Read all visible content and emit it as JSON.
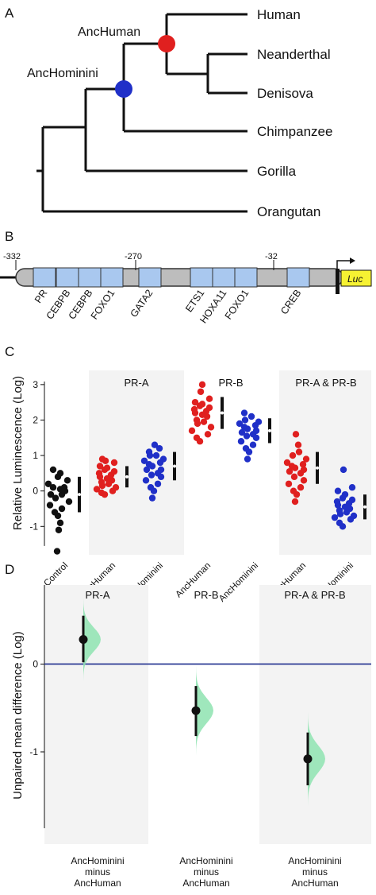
{
  "panels": {
    "a": "A",
    "b": "B",
    "c": "C",
    "d": "D"
  },
  "tree": {
    "taxa": [
      "Human",
      "Neanderthal",
      "Denisova",
      "Chimpanzee",
      "Gorilla",
      "Orangutan"
    ],
    "node_labels": {
      "anc_human": "AncHuman",
      "anc_hominini": "AncHominini"
    },
    "node_colors": {
      "anc_human": "#e0201f",
      "anc_hominini": "#2030c8"
    }
  },
  "promoter": {
    "positions": [
      "-332",
      "-270",
      "-32"
    ],
    "tf_sites": [
      "PR",
      "CEBPB",
      "CEBPB",
      "FOXO1",
      "GATA2",
      "ETS1",
      "HOXA11",
      "FOXO1",
      "CREB"
    ],
    "reporter": "Luc",
    "box_color": "#a9c8ef",
    "reporter_color": "#f6f232"
  },
  "chart_data": [
    {
      "type": "scatter",
      "panel": "C",
      "ylabel": "Relative Luminescence (Log)",
      "ylim": [
        -1.8,
        3.4
      ],
      "yticks": [
        -1,
        0,
        1,
        2,
        3
      ],
      "groups": [
        "",
        "PR-A",
        "PR-B",
        "PR-A & PR-B"
      ],
      "categories": [
        "Control",
        "AncHuman",
        "AncHominini",
        "AncHuman",
        "AncHominini",
        "AncHuman",
        "AncHominini"
      ],
      "series_colors": {
        "control": "#111111",
        "anc_human": "#e0201f",
        "anc_hominini": "#2030c8"
      },
      "points": [
        [
          0.6,
          0.5,
          0.4,
          0.3,
          0.2,
          0.1,
          0.1,
          0.0,
          -0.1,
          -0.1,
          -0.2,
          -0.3,
          -0.4,
          -0.5,
          -0.6,
          -0.7,
          -0.9,
          -1.1,
          -1.7,
          0.05
        ],
        [
          0.9,
          0.85,
          0.8,
          0.7,
          0.6,
          0.5,
          0.45,
          0.4,
          0.35,
          0.3,
          0.25,
          0.2,
          0.15,
          0.1,
          0.05,
          0.0,
          -0.05,
          -0.1,
          0.55,
          0.65
        ],
        [
          1.3,
          1.2,
          1.1,
          1.0,
          1.0,
          0.9,
          0.85,
          0.8,
          0.7,
          0.6,
          0.6,
          0.5,
          0.4,
          0.3,
          0.2,
          0.1,
          0.0,
          -0.2,
          0.75,
          0.45
        ],
        [
          3.0,
          2.8,
          2.6,
          2.5,
          2.4,
          2.3,
          2.25,
          2.2,
          2.1,
          2.0,
          1.9,
          1.8,
          1.7,
          1.6,
          1.5,
          1.4,
          2.15,
          2.35,
          1.95,
          2.45
        ],
        [
          2.2,
          2.1,
          2.0,
          1.9,
          1.85,
          1.8,
          1.7,
          1.65,
          1.6,
          1.5,
          1.4,
          1.3,
          1.2,
          1.1,
          0.9,
          1.75,
          1.55,
          1.95
        ],
        [
          1.6,
          1.3,
          1.1,
          1.0,
          0.9,
          0.8,
          0.7,
          0.65,
          0.6,
          0.5,
          0.4,
          0.3,
          0.2,
          0.1,
          0.0,
          -0.1,
          -0.3,
          0.75,
          0.55
        ],
        [
          0.6,
          0.1,
          0.0,
          -0.1,
          -0.2,
          -0.3,
          -0.35,
          -0.4,
          -0.45,
          -0.5,
          -0.55,
          -0.6,
          -0.7,
          -0.8,
          -0.9,
          -1.0,
          -0.25,
          -0.65,
          -0.75
        ]
      ],
      "summary": [
        {
          "mean": -0.1,
          "sd": 0.5
        },
        {
          "mean": 0.4,
          "sd": 0.3
        },
        {
          "mean": 0.7,
          "sd": 0.4
        },
        {
          "mean": 2.2,
          "sd": 0.45
        },
        {
          "mean": 1.7,
          "sd": 0.35
        },
        {
          "mean": 0.65,
          "sd": 0.45
        },
        {
          "mean": -0.45,
          "sd": 0.35
        }
      ]
    },
    {
      "type": "scatter",
      "panel": "D",
      "ylabel": "Unpaired mean difference (Log)",
      "ylim": [
        -2.05,
        0.9
      ],
      "yticks": [
        -1,
        0
      ],
      "groups": [
        "PR-A",
        "PR-B",
        "PR-A & PR-B"
      ],
      "comparisons": [
        "AncHominini\nminus\nAncHuman",
        "AncHominini\nminus\nAncHuman",
        "AncHominini\nminus\nAncHuman"
      ],
      "estimates": [
        {
          "mean": 0.28,
          "ci": [
            0.02,
            0.55
          ]
        },
        {
          "mean": -0.53,
          "ci": [
            -0.82,
            -0.25
          ]
        },
        {
          "mean": -1.08,
          "ci": [
            -1.38,
            -0.78
          ]
        }
      ],
      "distribution_color": "#8ee3b0",
      "zero_line_color": "#1f2f8e"
    }
  ]
}
